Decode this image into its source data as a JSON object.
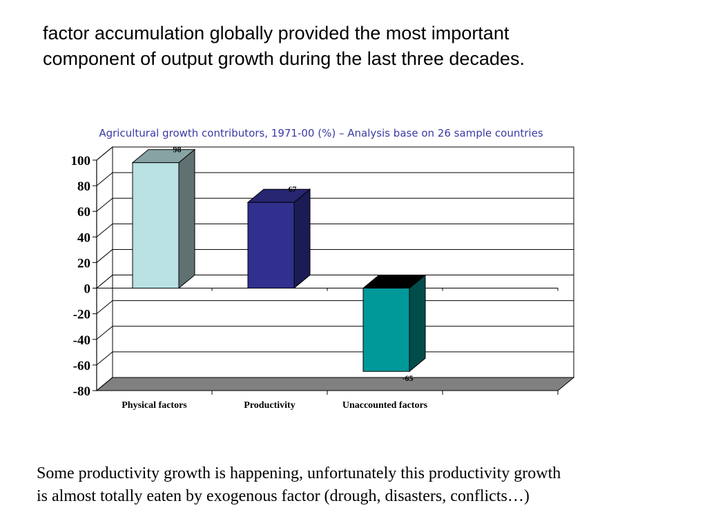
{
  "heading": {
    "line1": "factor accumulation globally provided the most important",
    "line2": "component of output growth during the last three decades."
  },
  "footer": {
    "line1": "Some productivity growth is happening, unfortunately this productivity growth",
    "line2": "is almost totally eaten by exogenous factor (drough, disasters, conflicts…)"
  },
  "chart_data": {
    "type": "bar",
    "title": "Agricultural growth contributors, 1971-00  (%) – Analysis base on 26 sample countries",
    "categories": [
      "Physical factors",
      "Productivity",
      "Unaccounted factors"
    ],
    "values": [
      98,
      67,
      -65
    ],
    "data_labels": [
      "98",
      "67",
      "-65"
    ],
    "ylim": [
      -80,
      100
    ],
    "yticks": [
      100,
      80,
      60,
      40,
      20,
      0,
      -20,
      -40,
      -60,
      -80
    ],
    "xlabel": "",
    "ylabel": "",
    "grid": true,
    "colors": {
      "bar_fronts": [
        "#b9e0e2",
        "#30308f",
        "#00999a"
      ],
      "bar_sides": [
        "#5f7271",
        "#1b1b55",
        "#004d4c"
      ],
      "bar_tops": [
        "#87a3a4",
        "#262671",
        "#000000"
      ],
      "floor": "#808080",
      "title": "#3a3aa5"
    }
  }
}
